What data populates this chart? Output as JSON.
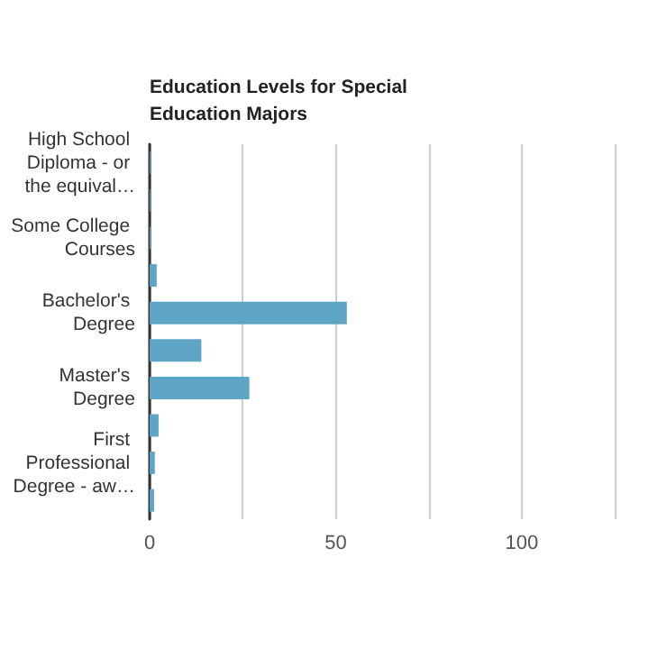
{
  "chart_data": {
    "type": "bar",
    "orientation": "horizontal",
    "title": "Education Levels for Special Education Majors",
    "categories": [
      "High School Diploma - or the equival…",
      null,
      "Some College Courses",
      null,
      "Bachelor's Degree",
      null,
      "Master's Degree",
      null,
      "First Professional Degree - aw…",
      null
    ],
    "values": [
      0.2,
      0.2,
      0.3,
      1.9,
      53,
      13.9,
      26.8,
      2.4,
      1.4,
      1.2
    ],
    "color": "#5ea5c5",
    "xlim": [
      0,
      125
    ],
    "xticks": [
      0,
      {
        "value": 25,
        "label": null
      },
      50,
      {
        "value": 75,
        "label": null
      },
      100,
      {
        "value": 125,
        "label": null
      }
    ],
    "grid": "x"
  }
}
